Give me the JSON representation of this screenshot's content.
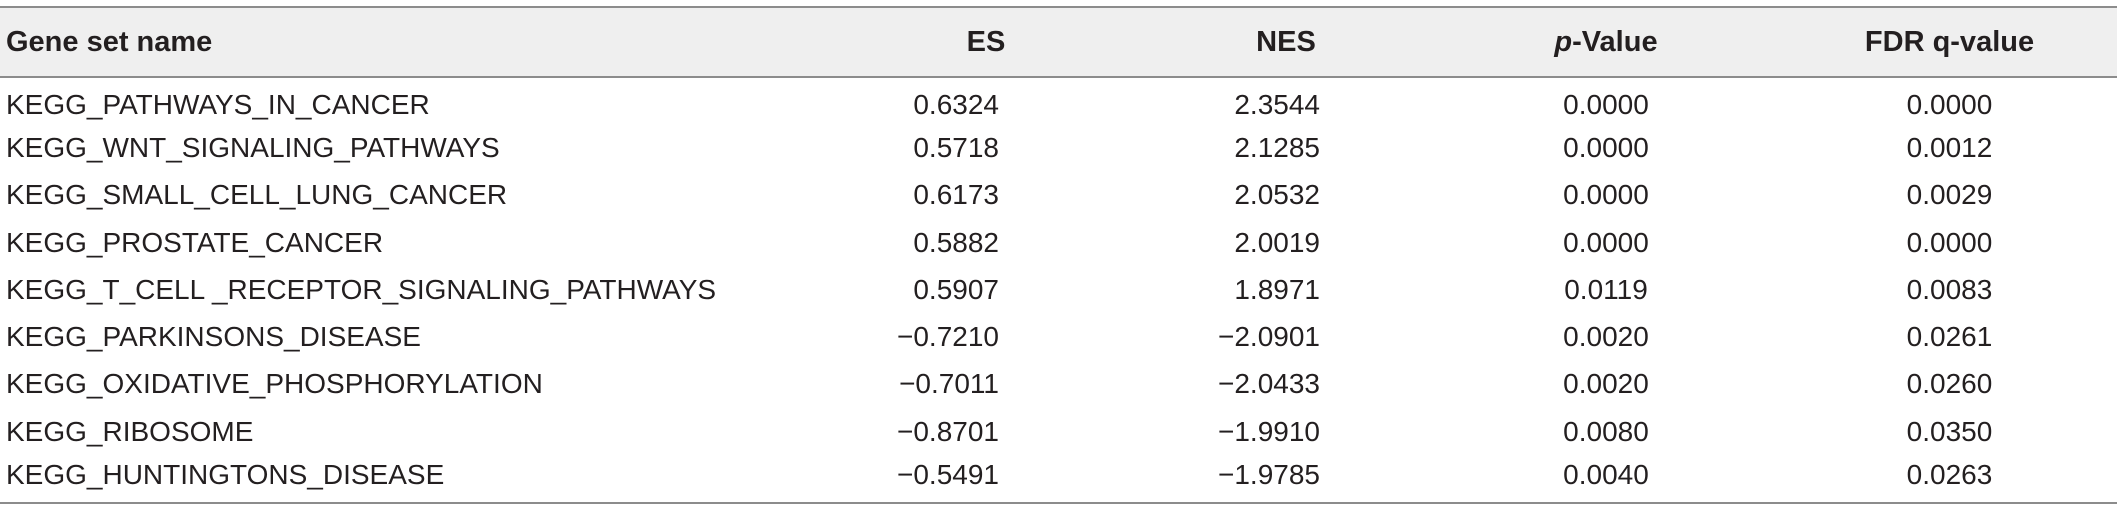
{
  "table": {
    "headers": {
      "name": "Gene set name",
      "es": "ES",
      "nes": "NES",
      "p_italic": "p",
      "p_rest": "-Value",
      "fdr": "FDR q-value"
    },
    "rows": [
      {
        "name": "KEGG_PATHWAYS_IN_CANCER",
        "es": "0.6324",
        "nes": "2.3544",
        "p": "0.0000",
        "fdr": "0.0000"
      },
      {
        "name": "KEGG_WNT_SIGNALING_PATHWAYS",
        "es": "0.5718",
        "nes": "2.1285",
        "p": "0.0000",
        "fdr": "0.0012"
      },
      {
        "name": "KEGG_SMALL_CELL_LUNG_CANCER",
        "es": "0.6173",
        "nes": "2.0532",
        "p": "0.0000",
        "fdr": "0.0029"
      },
      {
        "name": "KEGG_PROSTATE_CANCER",
        "es": "0.5882",
        "nes": "2.0019",
        "p": "0.0000",
        "fdr": "0.0000"
      },
      {
        "name": "KEGG_T_CELL _RECEPTOR_SIGNALING_PATHWAYS",
        "es": "0.5907",
        "nes": "1.8971",
        "p": "0.0119",
        "fdr": "0.0083"
      },
      {
        "name": "KEGG_PARKINSONS_DISEASE",
        "es": "−0.7210",
        "nes": "−2.0901",
        "p": "0.0020",
        "fdr": "0.0261"
      },
      {
        "name": "KEGG_OXIDATIVE_PHOSPHORYLATION",
        "es": "−0.7011",
        "nes": "−2.0433",
        "p": "0.0020",
        "fdr": "0.0260"
      },
      {
        "name": "KEGG_RIBOSOME",
        "es": "−0.8701",
        "nes": "−1.9910",
        "p": "0.0080",
        "fdr": "0.0350"
      },
      {
        "name": "KEGG_HUNTINGTONS_DISEASE",
        "es": "−0.5491",
        "nes": "−1.9785",
        "p": "0.0040",
        "fdr": "0.0263"
      }
    ]
  }
}
